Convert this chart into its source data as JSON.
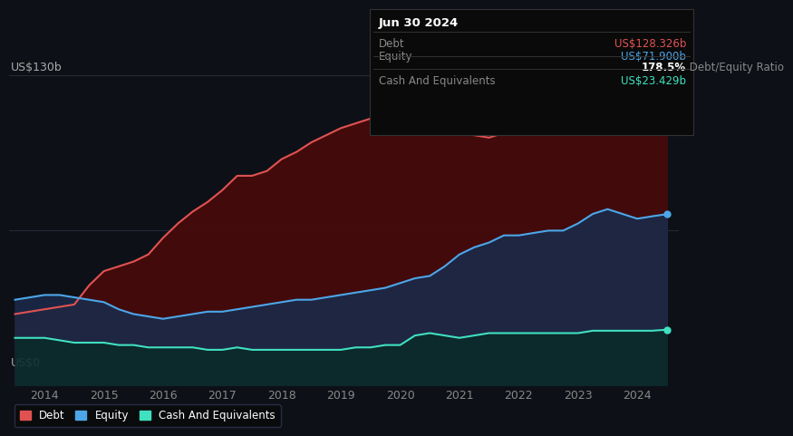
{
  "background_color": "#0d1117",
  "plot_bg_color": "#0d1117",
  "title_box": {
    "date": "Jun 30 2024",
    "debt_label": "Debt",
    "debt_value": "US$128.326b",
    "equity_label": "Equity",
    "equity_value": "US$71.900b",
    "ratio_text": "178.5% Debt/Equity Ratio",
    "cash_label": "Cash And Equivalents",
    "cash_value": "US$23.429b",
    "debt_color": "#e05252",
    "equity_color": "#4da6e8",
    "cash_color": "#40e0c0",
    "label_color": "#888888",
    "date_color": "#ffffff",
    "ratio_bold_color": "#ffffff",
    "ratio_normal_color": "#888888",
    "box_bg": "#0a0a0a",
    "box_border": "#333333"
  },
  "ylabel_top": "US$130b",
  "ylabel_bottom": "US$0",
  "grid_color": "#2a2a3a",
  "line_color_debt": "#e05252",
  "line_color_equity": "#4da6e8",
  "line_color_cash": "#40e0c0",
  "fill_color_debt": "#4a0a0a",
  "fill_color_equity": "#1a2a4a",
  "fill_color_cash": "#0a2a2a",
  "years": [
    2013.5,
    2013.75,
    2014.0,
    2014.25,
    2014.5,
    2014.75,
    2015.0,
    2015.25,
    2015.5,
    2015.75,
    2016.0,
    2016.25,
    2016.5,
    2016.75,
    2017.0,
    2017.25,
    2017.5,
    2017.75,
    2018.0,
    2018.25,
    2018.5,
    2018.75,
    2019.0,
    2019.25,
    2019.5,
    2019.75,
    2020.0,
    2020.25,
    2020.5,
    2020.75,
    2021.0,
    2021.25,
    2021.5,
    2021.75,
    2022.0,
    2022.25,
    2022.5,
    2022.75,
    2023.0,
    2023.25,
    2023.5,
    2023.75,
    2024.0,
    2024.25,
    2024.5
  ],
  "debt": [
    30,
    31,
    32,
    33,
    34,
    42,
    48,
    50,
    52,
    55,
    62,
    68,
    73,
    77,
    82,
    88,
    88,
    90,
    95,
    98,
    102,
    105,
    108,
    110,
    112,
    115,
    118,
    130,
    122,
    112,
    108,
    105,
    104,
    106,
    108,
    110,
    112,
    115,
    118,
    120,
    122,
    123,
    124,
    126,
    128.326
  ],
  "equity": [
    36,
    37,
    38,
    38,
    37,
    36,
    35,
    32,
    30,
    29,
    28,
    29,
    30,
    31,
    31,
    32,
    33,
    34,
    35,
    36,
    36,
    37,
    38,
    39,
    40,
    41,
    43,
    45,
    46,
    50,
    55,
    58,
    60,
    63,
    63,
    64,
    65,
    65,
    68,
    72,
    74,
    72,
    70,
    71,
    71.9
  ],
  "cash": [
    20,
    20,
    20,
    19,
    18,
    18,
    18,
    17,
    17,
    16,
    16,
    16,
    16,
    15,
    15,
    16,
    15,
    15,
    15,
    15,
    15,
    15,
    15,
    16,
    16,
    17,
    17,
    21,
    22,
    21,
    20,
    21,
    22,
    22,
    22,
    22,
    22,
    22,
    22,
    23,
    23,
    23,
    23,
    23,
    23.429
  ],
  "ylim": [
    0,
    140
  ],
  "dot_color_debt": "#e05252",
  "dot_color_equity": "#4da6e8",
  "dot_color_cash": "#40e0c0",
  "xtick_positions": [
    2014,
    2015,
    2016,
    2017,
    2018,
    2019,
    2020,
    2021,
    2022,
    2023,
    2024
  ],
  "legend_entries": [
    "Debt",
    "Equity",
    "Cash And Equivalents"
  ]
}
